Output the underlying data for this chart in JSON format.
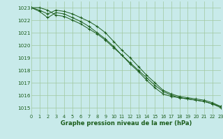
{
  "title": "Graphe pression niveau de la mer (hPa)",
  "background_color": "#c8eaea",
  "grid_color": "#a0c8a0",
  "line_color": "#1a5c1a",
  "xlim": [
    0,
    23
  ],
  "ylim": [
    1014.5,
    1023.5
  ],
  "yticks": [
    1015,
    1016,
    1017,
    1018,
    1019,
    1020,
    1021,
    1022,
    1023
  ],
  "xticks": [
    0,
    1,
    2,
    3,
    4,
    5,
    6,
    7,
    8,
    9,
    10,
    11,
    12,
    13,
    14,
    15,
    16,
    17,
    18,
    19,
    20,
    21,
    22,
    23
  ],
  "line1": {
    "x": [
      0,
      1,
      2,
      3,
      4,
      5,
      6,
      7,
      8,
      9,
      10,
      11,
      12,
      13,
      14,
      15,
      16,
      17,
      18,
      19,
      20,
      21,
      22,
      23
    ],
    "y": [
      1023.0,
      1023.0,
      1022.8,
      1022.4,
      1022.3,
      1022.0,
      1021.7,
      1021.3,
      1020.9,
      1020.4,
      1019.8,
      1019.2,
      1018.6,
      1018.0,
      1017.4,
      1016.8,
      1016.3,
      1016.0,
      1015.8,
      1015.7,
      1015.6,
      1015.5,
      1015.3,
      1015.0
    ]
  },
  "line2": {
    "x": [
      0,
      1,
      2,
      3,
      4,
      5,
      6,
      7,
      8,
      9,
      10,
      11,
      12,
      13,
      14,
      15,
      16,
      17,
      18,
      19,
      20,
      21,
      22,
      23
    ],
    "y": [
      1023.0,
      1022.8,
      1022.5,
      1022.8,
      1022.7,
      1022.5,
      1022.2,
      1021.9,
      1021.5,
      1021.0,
      1020.3,
      1019.6,
      1019.0,
      1018.3,
      1017.6,
      1017.0,
      1016.4,
      1016.1,
      1015.9,
      1015.8,
      1015.7,
      1015.6,
      1015.4,
      1015.1
    ]
  },
  "line3": {
    "x": [
      0,
      1,
      2,
      3,
      4,
      5,
      6,
      7,
      8,
      9,
      10,
      11,
      12,
      13,
      14,
      15,
      16,
      17,
      18,
      19,
      20,
      21,
      22,
      23
    ],
    "y": [
      1023.0,
      1022.7,
      1022.2,
      1022.6,
      1022.5,
      1022.2,
      1021.9,
      1021.5,
      1021.0,
      1020.5,
      1019.9,
      1019.2,
      1018.5,
      1017.9,
      1017.2,
      1016.6,
      1016.1,
      1015.9,
      1015.8,
      1015.7,
      1015.6,
      1015.5,
      1015.3,
      1015.1
    ]
  }
}
